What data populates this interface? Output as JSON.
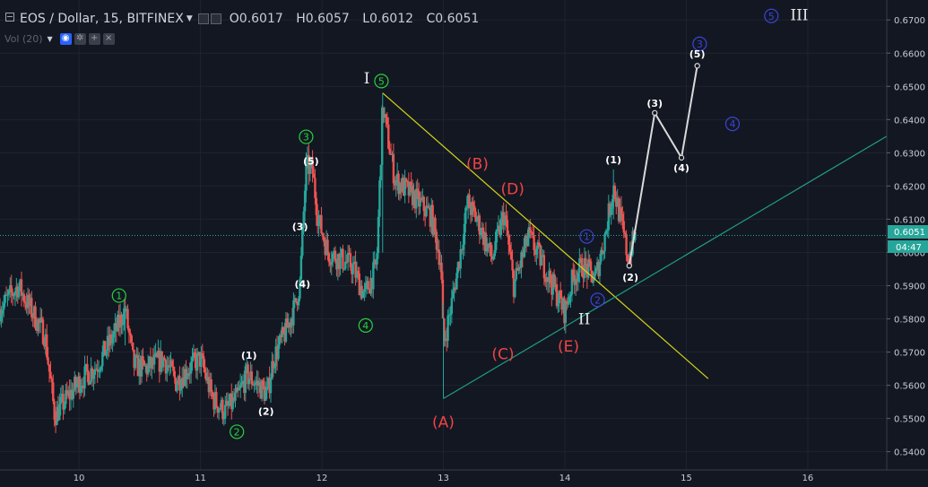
{
  "header": {
    "symbol": "EOS / Dollar, 15, BITFINEX",
    "open_label": "O",
    "open": "0.6017",
    "high_label": "H",
    "high": "0.6057",
    "low_label": "L",
    "low": "0.6012",
    "close_label": "C",
    "close": "0.6051"
  },
  "volume_indicator": {
    "label": "Vol (20)"
  },
  "price_axis": {
    "ticks": [
      "0.6700",
      "0.6600",
      "0.6500",
      "0.6400",
      "0.6300",
      "0.6200",
      "0.6100",
      "0.6000",
      "0.5900",
      "0.5800",
      "0.5700",
      "0.5600",
      "0.5500",
      "0.5400"
    ],
    "last_price": "0.6051",
    "countdown": "04:47"
  },
  "time_axis": {
    "ticks": [
      "10",
      "11",
      "12",
      "13",
      "14",
      "15",
      "16"
    ]
  },
  "colors": {
    "background": "#131722",
    "up": "#26a69a",
    "down": "#ef5350",
    "trendline": "#d4d419",
    "support": "#1f9c86",
    "projection": "#d9d9d9",
    "green_label": "#27d33e",
    "blue_label": "#3a44d6",
    "red_label": "#ef4444",
    "last_price": "#26a69a"
  },
  "chart_data": {
    "type": "candlestick",
    "x_axis": "day",
    "y_axis": "price",
    "ylim": [
      0.5345,
      0.676
    ],
    "xlim": [
      9.35,
      16.65
    ],
    "price_line": 0.6051,
    "path": [
      [
        9.35,
        0.583
      ],
      [
        9.5,
        0.59
      ],
      [
        9.6,
        0.583
      ],
      [
        9.72,
        0.575
      ],
      [
        9.8,
        0.551
      ],
      [
        9.9,
        0.556
      ],
      [
        10.0,
        0.561
      ],
      [
        10.15,
        0.566
      ],
      [
        10.3,
        0.576
      ],
      [
        10.38,
        0.583
      ],
      [
        10.45,
        0.566
      ],
      [
        10.55,
        0.565
      ],
      [
        10.7,
        0.568
      ],
      [
        10.8,
        0.561
      ],
      [
        10.9,
        0.565
      ],
      [
        11.0,
        0.568
      ],
      [
        11.1,
        0.556
      ],
      [
        11.2,
        0.552
      ],
      [
        11.3,
        0.556
      ],
      [
        11.38,
        0.563
      ],
      [
        11.48,
        0.56
      ],
      [
        11.55,
        0.557
      ],
      [
        11.6,
        0.568
      ],
      [
        11.7,
        0.576
      ],
      [
        11.78,
        0.584
      ],
      [
        11.82,
        0.591
      ],
      [
        11.87,
        0.626
      ],
      [
        11.92,
        0.625
      ],
      [
        11.97,
        0.61
      ],
      [
        12.05,
        0.6
      ],
      [
        12.15,
        0.598
      ],
      [
        12.25,
        0.596
      ],
      [
        12.35,
        0.587
      ],
      [
        12.45,
        0.596
      ],
      [
        12.5,
        0.644
      ],
      [
        12.6,
        0.622
      ],
      [
        12.75,
        0.617
      ],
      [
        12.9,
        0.611
      ],
      [
        12.98,
        0.597
      ],
      [
        13.0,
        0.572
      ],
      [
        13.07,
        0.585
      ],
      [
        13.14,
        0.6
      ],
      [
        13.2,
        0.615
      ],
      [
        13.3,
        0.608
      ],
      [
        13.4,
        0.598
      ],
      [
        13.5,
        0.612
      ],
      [
        13.58,
        0.59
      ],
      [
        13.7,
        0.605
      ],
      [
        13.8,
        0.598
      ],
      [
        13.9,
        0.59
      ],
      [
        14.0,
        0.582
      ],
      [
        14.07,
        0.593
      ],
      [
        14.15,
        0.596
      ],
      [
        14.25,
        0.592
      ],
      [
        14.33,
        0.605
      ],
      [
        14.4,
        0.62
      ],
      [
        14.48,
        0.606
      ],
      [
        14.52,
        0.598
      ],
      [
        14.55,
        0.602
      ],
      [
        14.58,
        0.605
      ]
    ],
    "trendline": {
      "from": [
        12.5,
        0.648
      ],
      "to": [
        15.18,
        0.562
      ]
    },
    "support_line": {
      "from": [
        13.0,
        0.556
      ],
      "to": [
        16.65,
        0.635
      ]
    },
    "projection": [
      [
        14.53,
        0.596
      ],
      [
        14.74,
        0.642
      ],
      [
        14.96,
        0.6285
      ],
      [
        15.09,
        0.6562
      ]
    ],
    "projection_points": [
      [
        14.53,
        0.596
      ],
      [
        14.74,
        0.642
      ],
      [
        14.96,
        0.6285
      ],
      [
        15.09,
        0.6562
      ]
    ],
    "wave_labels": {
      "green_circled": [
        {
          "text": "1",
          "x": 10.33,
          "y": 0.587
        },
        {
          "text": "2",
          "x": 11.3,
          "y": 0.546
        },
        {
          "text": "3",
          "x": 11.87,
          "y": 0.6348
        },
        {
          "text": "4",
          "x": 12.36,
          "y": 0.578
        },
        {
          "text": "5",
          "x": 12.49,
          "y": 0.6516
        }
      ],
      "blue_circled": [
        {
          "text": "1",
          "x": 14.18,
          "y": 0.6048
        },
        {
          "text": "2",
          "x": 14.27,
          "y": 0.5857
        },
        {
          "text": "3",
          "x": 15.11,
          "y": 0.6628
        },
        {
          "text": "4",
          "x": 15.38,
          "y": 0.6387
        },
        {
          "text": "5",
          "x": 15.7,
          "y": 0.6712
        }
      ],
      "white_parenthesized": [
        {
          "text": "(1)",
          "x": 11.4,
          "y": 0.569
        },
        {
          "text": "(2)",
          "x": 11.54,
          "y": 0.5522
        },
        {
          "text": "(3)",
          "x": 11.82,
          "y": 0.6078
        },
        {
          "text": "(4)",
          "x": 11.84,
          "y": 0.5905
        },
        {
          "text": "(5)",
          "x": 11.91,
          "y": 0.6275
        },
        {
          "text": "(1)",
          "x": 14.4,
          "y": 0.628
        },
        {
          "text": "(2)",
          "x": 14.54,
          "y": 0.5925
        },
        {
          "text": "(3)",
          "x": 14.74,
          "y": 0.645
        },
        {
          "text": "(4)",
          "x": 14.96,
          "y": 0.6255
        },
        {
          "text": "(5)",
          "x": 15.09,
          "y": 0.6598
        }
      ],
      "red_abcde": [
        {
          "text": "(A)",
          "x": 13.0,
          "y": 0.549
        },
        {
          "text": "(B)",
          "x": 13.28,
          "y": 0.6267
        },
        {
          "text": "(C)",
          "x": 13.49,
          "y": 0.5695
        },
        {
          "text": "(D)",
          "x": 13.57,
          "y": 0.6192
        },
        {
          "text": "(E)",
          "x": 14.03,
          "y": 0.5717
        }
      ],
      "roman": [
        {
          "text": "I",
          "x": 12.37,
          "y": 0.6525
        },
        {
          "text": "II",
          "x": 14.16,
          "y": 0.58
        },
        {
          "text": "III",
          "x": 15.93,
          "y": 0.6716
        }
      ]
    }
  }
}
